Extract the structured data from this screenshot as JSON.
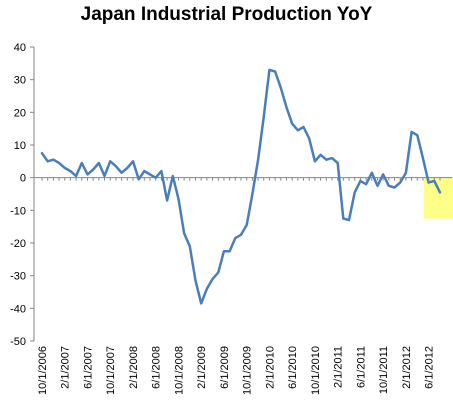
{
  "chart_data": {
    "type": "line",
    "title": "Japan Industrial Production YoY",
    "xlabel": "",
    "ylabel": "",
    "ylim": [
      -50,
      40
    ],
    "yticks": [
      40,
      30,
      20,
      10,
      0,
      -10,
      -20,
      -30,
      -40,
      -50
    ],
    "legend": "none",
    "grid": false,
    "x_start": "10/1/2006",
    "x_tick_labels": [
      "10/1/2006",
      "2/1/2007",
      "6/1/2007",
      "10/1/2007",
      "2/1/2008",
      "6/1/2008",
      "10/1/2008",
      "2/1/2009",
      "6/1/2009",
      "10/1/2009",
      "2/1/2010",
      "6/1/2010",
      "10/1/2010",
      "2/1/2011",
      "6/1/2011",
      "10/1/2011",
      "2/1/2012",
      "6/1/2012"
    ],
    "series": [
      {
        "color": "#4a7ebb",
        "values": [
          7.5,
          5.0,
          5.5,
          4.5,
          3.0,
          2.0,
          0.5,
          4.5,
          1.0,
          2.5,
          4.5,
          0.5,
          5.0,
          3.5,
          1.5,
          3.0,
          5.0,
          -0.5,
          2.0,
          1.0,
          0.0,
          2.0,
          -7.0,
          0.5,
          -6.5,
          -17.0,
          -21.0,
          -31.5,
          -38.5,
          -34.0,
          -31.0,
          -29.0,
          -22.5,
          -22.5,
          -18.5,
          -17.5,
          -14.5,
          -5.0,
          5.5,
          18.5,
          33.0,
          32.5,
          27.5,
          21.5,
          16.5,
          14.5,
          15.5,
          12.0,
          5.0,
          7.0,
          5.5,
          6.0,
          4.5,
          -12.5,
          -13.0,
          -4.5,
          -1.0,
          -2.0,
          1.5,
          -2.5,
          1.0,
          -2.5,
          -3.0,
          -1.5,
          1.5,
          14.0,
          13.0,
          6.0,
          -1.5,
          -1.0,
          -4.5
        ]
      }
    ],
    "highlight": {
      "x_from": "6/1/2012",
      "x_to": "10/1/2012",
      "y_from": -12.5,
      "y_to": 0,
      "color": "#ffff88"
    }
  }
}
